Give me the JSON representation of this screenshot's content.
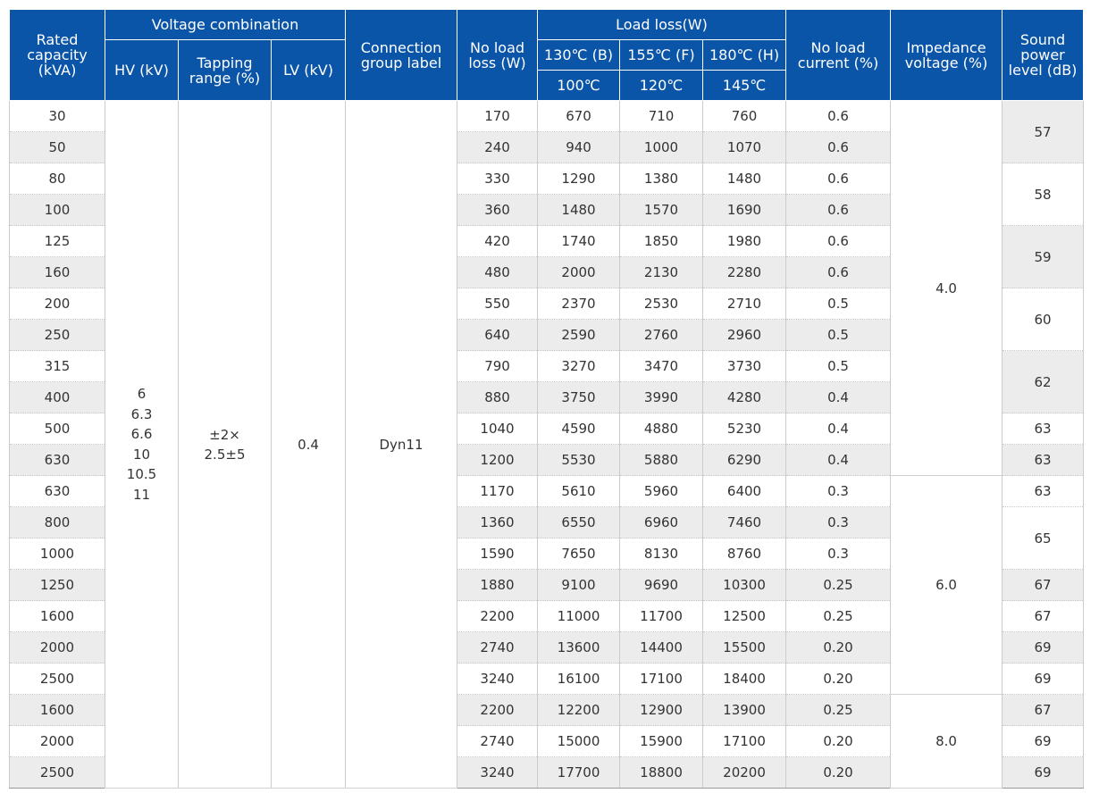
{
  "header": {
    "rated_capacity": "Rated capacity (kVA)",
    "voltage_combination": "Voltage combination",
    "hv": "HV (kV)",
    "tapping_range": "Tapping range (%)",
    "lv": "LV (kV)",
    "connection_group": "Connection group label",
    "no_load_loss": "No load loss (W)",
    "load_loss": "Load loss(W)",
    "temp_b": "130℃ (B)",
    "temp_f": "155℃ (F)",
    "temp_h": "180℃ (H)",
    "ref_b": "100℃",
    "ref_f": "120℃",
    "ref_h": "145℃",
    "no_load_current": "No load current (%)",
    "impedance_voltage": "Impedance voltage (%)",
    "sound_power": "Sound power level (dB)"
  },
  "merged": {
    "hv_values": [
      "6",
      "6.3",
      "6.6",
      "10",
      "10.5",
      "11"
    ],
    "tapping_line1": "±2×",
    "tapping_line2": "2.5±5",
    "lv": "0.4",
    "connection": "Dyn11",
    "impedance": [
      "4.0",
      "6.0",
      "8.0"
    ],
    "sound": [
      "57",
      "58",
      "59",
      "60",
      "62",
      "63",
      "63",
      "63",
      "65",
      "67",
      "67",
      "69",
      "69",
      "67",
      "69",
      "69"
    ]
  },
  "rows": [
    {
      "cap": "30",
      "nll": "170",
      "b": "670",
      "f": "710",
      "h": "760",
      "nlc": "0.6"
    },
    {
      "cap": "50",
      "nll": "240",
      "b": "940",
      "f": "1000",
      "h": "1070",
      "nlc": "0.6"
    },
    {
      "cap": "80",
      "nll": "330",
      "b": "1290",
      "f": "1380",
      "h": "1480",
      "nlc": "0.6"
    },
    {
      "cap": "100",
      "nll": "360",
      "b": "1480",
      "f": "1570",
      "h": "1690",
      "nlc": "0.6"
    },
    {
      "cap": "125",
      "nll": "420",
      "b": "1740",
      "f": "1850",
      "h": "1980",
      "nlc": "0.6"
    },
    {
      "cap": "160",
      "nll": "480",
      "b": "2000",
      "f": "2130",
      "h": "2280",
      "nlc": "0.6"
    },
    {
      "cap": "200",
      "nll": "550",
      "b": "2370",
      "f": "2530",
      "h": "2710",
      "nlc": "0.5"
    },
    {
      "cap": "250",
      "nll": "640",
      "b": "2590",
      "f": "2760",
      "h": "2960",
      "nlc": "0.5"
    },
    {
      "cap": "315",
      "nll": "790",
      "b": "3270",
      "f": "3470",
      "h": "3730",
      "nlc": "0.5"
    },
    {
      "cap": "400",
      "nll": "880",
      "b": "3750",
      "f": "3990",
      "h": "4280",
      "nlc": "0.4"
    },
    {
      "cap": "500",
      "nll": "1040",
      "b": "4590",
      "f": "4880",
      "h": "5230",
      "nlc": "0.4"
    },
    {
      "cap": "630",
      "nll": "1200",
      "b": "5530",
      "f": "5880",
      "h": "6290",
      "nlc": "0.4"
    },
    {
      "cap": "630",
      "nll": "1170",
      "b": "5610",
      "f": "5960",
      "h": "6400",
      "nlc": "0.3"
    },
    {
      "cap": "800",
      "nll": "1360",
      "b": "6550",
      "f": "6960",
      "h": "7460",
      "nlc": "0.3"
    },
    {
      "cap": "1000",
      "nll": "1590",
      "b": "7650",
      "f": "8130",
      "h": "8760",
      "nlc": "0.3"
    },
    {
      "cap": "1250",
      "nll": "1880",
      "b": "9100",
      "f": "9690",
      "h": "10300",
      "nlc": "0.25"
    },
    {
      "cap": "1600",
      "nll": "2200",
      "b": "11000",
      "f": "11700",
      "h": "12500",
      "nlc": "0.25"
    },
    {
      "cap": "2000",
      "nll": "2740",
      "b": "13600",
      "f": "14400",
      "h": "15500",
      "nlc": "0.20"
    },
    {
      "cap": "2500",
      "nll": "3240",
      "b": "16100",
      "f": "17100",
      "h": "18400",
      "nlc": "0.20"
    },
    {
      "cap": "1600",
      "nll": "2200",
      "b": "12200",
      "f": "12900",
      "h": "13900",
      "nlc": "0.25"
    },
    {
      "cap": "2000",
      "nll": "2740",
      "b": "15000",
      "f": "15900",
      "h": "17100",
      "nlc": "0.20"
    },
    {
      "cap": "2500",
      "nll": "3240",
      "b": "17700",
      "f": "18800",
      "h": "20200",
      "nlc": "0.20"
    }
  ]
}
